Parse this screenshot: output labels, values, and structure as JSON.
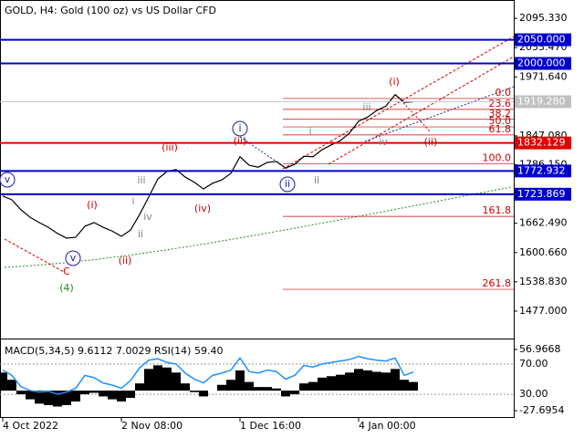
{
  "chart_data": [
    {
      "type": "line",
      "title": "GOLD, H4:  Gold (100 oz) vs US Dollar CFD",
      "categories": [
        "4 Oct 2022",
        null,
        null,
        null,
        null,
        null,
        null,
        null,
        null,
        null,
        null,
        null,
        null,
        "2 Nov 08:00",
        null,
        null,
        null,
        null,
        null,
        null,
        null,
        null,
        null,
        null,
        null,
        null,
        "1 Dec 16:00",
        null,
        null,
        null,
        null,
        null,
        null,
        null,
        null,
        null,
        null,
        null,
        null,
        "4 Jan 00:00",
        null,
        null,
        null,
        null,
        null,
        null
      ],
      "series": [
        {
          "color": "#000000",
          "values": [
            1720,
            1712,
            1691,
            1675,
            1664,
            1654,
            1641,
            1631,
            1633,
            1656,
            1664,
            1654,
            1646,
            1635,
            1648,
            1681,
            1718,
            1756,
            1772,
            1776,
            1760,
            1749,
            1735,
            1747,
            1754,
            1768,
            1803,
            1785,
            1781,
            1791,
            1793,
            1779,
            1787,
            1804,
            1803,
            1818,
            1828,
            1837,
            1853,
            1878,
            1887,
            1901,
            1910,
            1934,
            1918,
            1919
          ]
        }
      ],
      "ylim": [
        1421,
        2134
      ],
      "yticks": [
        {
          "value": 2095.33,
          "label": "2095.330"
        },
        {
          "value": 2033.47,
          "label": "2033.470"
        },
        {
          "value": 1971.64,
          "label": "1971.640"
        },
        {
          "value": 1847.08,
          "label": "1847.080"
        },
        {
          "value": 1786.15,
          "label": "1786.150"
        },
        {
          "value": 1662.49,
          "label": "1662.490"
        },
        {
          "value": 1600.66,
          "label": "1600.660"
        },
        {
          "value": 1538.83,
          "label": "1538.830"
        },
        {
          "value": 1477,
          "label": "1477.000"
        }
      ],
      "levels": [
        {
          "value": 2050,
          "label": "2050.000",
          "color": "#0000cd"
        },
        {
          "value": 2000,
          "label": "2000.000",
          "color": "#0000cd"
        },
        {
          "value": 1919.28,
          "label": "1919.280",
          "color": "#c0c0c0"
        },
        {
          "value": 1832.129,
          "label": "1832.129",
          "color": "#e00000"
        },
        {
          "value": 1772.932,
          "label": "1772.932",
          "color": "#0000cd"
        },
        {
          "value": 1723.869,
          "label": "1723.869",
          "color": "#0000cd"
        }
      ],
      "fib_levels": [
        {
          "value": 1926,
          "label": "0.0"
        },
        {
          "value": 1903,
          "label": "23.6"
        },
        {
          "value": 1882,
          "label": "38.2"
        },
        {
          "value": 1866,
          "label": "50.0"
        },
        {
          "value": 1849,
          "label": "61.8"
        },
        {
          "value": 1788,
          "label": "100.0"
        },
        {
          "value": 1677,
          "label": "161.8"
        },
        {
          "value": 1523,
          "label": "261.8"
        }
      ],
      "annotations": [
        {
          "text": "(i)",
          "color": "#cc0000"
        },
        {
          "text": "(ii)",
          "color": "#cc0000"
        },
        {
          "text": "i",
          "color": "#1a1aa6"
        },
        {
          "text": "(ii)",
          "color": "#cc0000"
        },
        {
          "text": "(iii)",
          "color": "#cc0000"
        },
        {
          "text": "(iv)",
          "color": "#cc0000"
        },
        {
          "text": "(i)",
          "color": "#cc0000"
        },
        {
          "text": "(ii)",
          "color": "#cc0000"
        },
        {
          "text": "v",
          "color": "#1a1aa6"
        },
        {
          "text": "v",
          "color": "#1a1aa6"
        },
        {
          "text": "C",
          "color": "#cc0000"
        },
        {
          "text": "(4)",
          "color": "#228b22"
        },
        {
          "text": "ii",
          "color": "#1a1aa6"
        },
        {
          "text": "iii",
          "color": "#808080"
        },
        {
          "text": "i",
          "color": "#808080"
        },
        {
          "text": "ii",
          "color": "#808080"
        },
        {
          "text": "iv",
          "color": "#808080"
        },
        {
          "text": "iii",
          "color": "#808080"
        },
        {
          "text": "iv",
          "color": "#808080"
        },
        {
          "text": "ii",
          "color": "#808080"
        },
        {
          "text": "i",
          "color": "#808080"
        }
      ]
    },
    {
      "type": "bar",
      "title": "MACD(5,34,5) 9.6112 7.0029 RSI(14) 59.40",
      "series": [
        {
          "color": "#000000",
          "values": [
            25,
            15,
            -5,
            -12,
            -18,
            -20,
            -22,
            -20,
            -15,
            -5,
            -3,
            -8,
            -12,
            -15,
            -10,
            10,
            30,
            35,
            32,
            25,
            10,
            -2,
            -8,
            0,
            8,
            15,
            28,
            12,
            5,
            5,
            3,
            -8,
            -5,
            10,
            12,
            18,
            20,
            22,
            25,
            30,
            28,
            26,
            25,
            30,
            15,
            12
          ]
        },
        {
          "color": "#1e90ff",
          "axis": "y2",
          "values": [
            62,
            55,
            40,
            35,
            33,
            34,
            30,
            33,
            38,
            55,
            52,
            45,
            42,
            38,
            48,
            65,
            75,
            77,
            72,
            70,
            58,
            50,
            45,
            55,
            58,
            62,
            78,
            60,
            58,
            62,
            60,
            50,
            55,
            68,
            66,
            70,
            72,
            74,
            76,
            80,
            77,
            75,
            74,
            78,
            55,
            59.4
          ]
        }
      ],
      "ylim": [
        -36.5,
        68.3
      ],
      "yticks": [
        56.9668,
        -27.6954
      ],
      "y2lim": [
        0,
        100
      ],
      "y2ticks": [
        {
          "value": 70,
          "label": "70.00"
        },
        {
          "value": 30,
          "label": "30.00"
        }
      ]
    }
  ]
}
